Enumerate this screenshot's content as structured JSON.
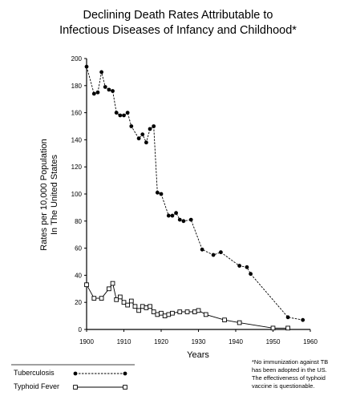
{
  "chart_data": {
    "type": "line",
    "title_lines": [
      "Declining Death Rates Attributable to",
      "Infectious Diseases of Infancy and Childhood*"
    ],
    "xlabel": "Years",
    "ylabel_lines": [
      "Rates per 10,000 Population",
      "In The United States"
    ],
    "xlim": [
      1900,
      1960
    ],
    "ylim": [
      0,
      200
    ],
    "xticks": [
      1900,
      1910,
      1920,
      1930,
      1940,
      1950,
      1960
    ],
    "yticks": [
      0,
      20,
      40,
      60,
      80,
      100,
      120,
      140,
      160,
      180,
      200
    ],
    "grid": false,
    "legend_position": "bottom-left",
    "series": [
      {
        "name": "Tuberculosis",
        "marker": "filled-circle",
        "line_style": "dashed",
        "x": [
          1900,
          1902,
          1903,
          1904,
          1905,
          1906,
          1907,
          1908,
          1909,
          1910,
          1911,
          1912,
          1914,
          1915,
          1916,
          1917,
          1918,
          1919,
          1920,
          1922,
          1923,
          1924,
          1925,
          1926,
          1928,
          1931,
          1934,
          1936,
          1941,
          1943,
          1944,
          1954,
          1958
        ],
        "y": [
          194,
          174,
          175,
          190,
          179,
          177,
          176,
          160,
          158,
          158,
          160,
          150,
          141,
          144,
          138,
          148,
          150,
          101,
          100,
          84,
          84,
          86,
          81,
          80,
          81,
          59,
          55,
          57,
          47,
          46,
          41,
          9,
          7
        ]
      },
      {
        "name": "Typhoid Fever",
        "marker": "open-square",
        "line_style": "solid",
        "x": [
          1900,
          1902,
          1904,
          1906,
          1907,
          1908,
          1909,
          1910,
          1911,
          1912,
          1913,
          1914,
          1915,
          1916,
          1917,
          1918,
          1919,
          1920,
          1921,
          1922,
          1923,
          1925,
          1927,
          1929,
          1930,
          1932,
          1937,
          1941,
          1950,
          1954
        ],
        "y": [
          33,
          23,
          23,
          30,
          34,
          22,
          24,
          20,
          18,
          21,
          17,
          14,
          17,
          16,
          17,
          13,
          11,
          12,
          10,
          11,
          12,
          13,
          13,
          13,
          14,
          11,
          7,
          5,
          1,
          1
        ]
      }
    ],
    "footnote_lines": [
      "*No immunization against TB",
      "has been adopted in the US.",
      "The effectiveness of typhoid",
      "vaccine is questionable."
    ]
  }
}
